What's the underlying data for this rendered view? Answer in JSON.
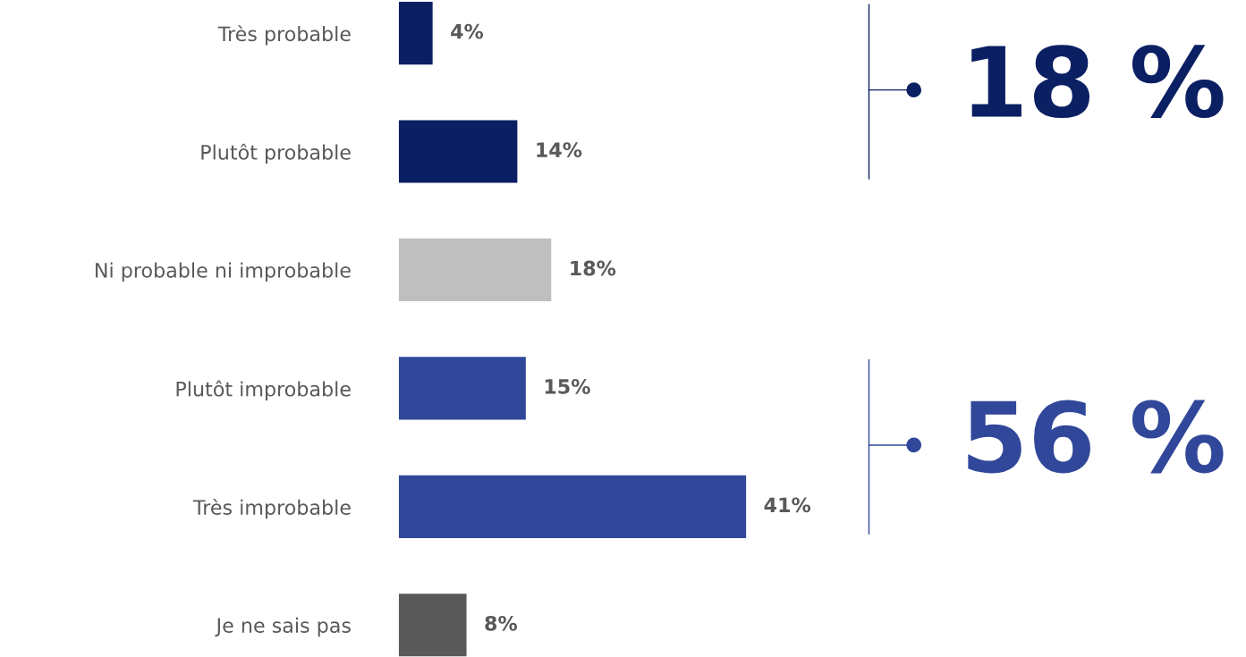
{
  "chart_data": {
    "type": "bar",
    "orientation": "horizontal",
    "categories": [
      "Très probable",
      "Plutôt probable",
      "Ni probable ni improbable",
      "Plutôt improbable",
      "Très improbable",
      "Je ne sais pas"
    ],
    "values": [
      4,
      14,
      18,
      15,
      41,
      8
    ],
    "colors": [
      "#0b1f63",
      "#0b1f63",
      "#bfbfbf",
      "#30479a",
      "#30479a",
      "#595959"
    ],
    "value_labels": [
      "4%",
      "14%",
      "18%",
      "15%",
      "41%",
      "8%"
    ],
    "tick_labels": "y",
    "grid": false,
    "annotations": [
      "18 %",
      "56 %"
    ]
  }
}
